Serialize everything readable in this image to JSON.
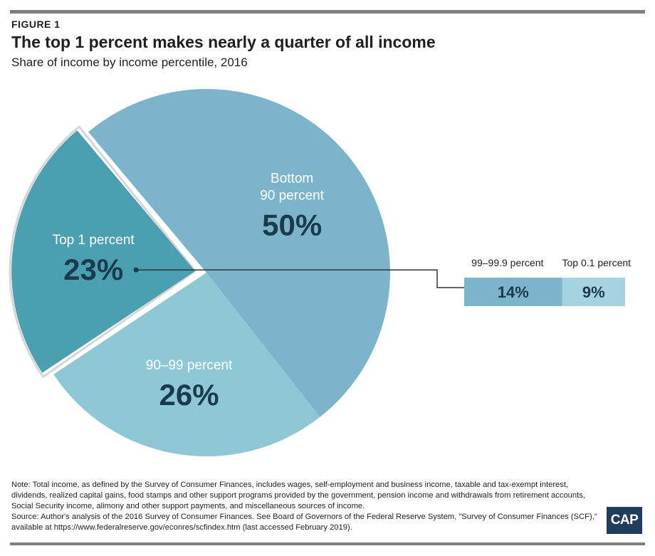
{
  "figure_label": "FIGURE 1",
  "chart_data": {
    "type": "pie",
    "title": "The top 1 percent makes nearly a quarter of all income",
    "subtitle": "Share of income by income percentile, 2016",
    "slices": [
      {
        "label_lines": [
          "Bottom",
          "90 percent"
        ],
        "value": 50,
        "value_label": "50%",
        "color": "#7bb4cb"
      },
      {
        "label_lines": [
          "90–99 percent"
        ],
        "value": 26,
        "value_label": "26%",
        "color": "#8ec7d6"
      },
      {
        "label_lines": [
          "Top 1 percent"
        ],
        "value": 23,
        "value_label": "23%",
        "color": "#4aa0b1",
        "exploded": true
      }
    ],
    "breakdown": {
      "parent": "Top 1 percent",
      "segments": [
        {
          "label": "99–99.9 percent",
          "value": 14,
          "value_label": "14%",
          "color": "#7bb4cb"
        },
        {
          "label": "Top 0.1 percent",
          "value": 9,
          "value_label": "9%",
          "color": "#a5d3df"
        }
      ]
    }
  },
  "note": {
    "text": "Note: Total income, as defined by the Survey of Consumer Finances, includes wages, self-employment and business income, taxable and tax-exempt interest, dividends, realized capital gains, food stamps and other support programs provided by the government, pension income and withdrawals from retirement accounts, Social Security income, alimony and other support payments, and miscellaneous sources of income.",
    "source": "Source: Author's analysis of the 2016 Survey of Consumer Finances. See Board of Governors of the Federal Reserve System, \"Survey of Consumer Finances (SCF),\" available at https://www.federalreserve.gov/econres/scfindex.htm (last accessed February 2019)."
  },
  "logo": "CAP"
}
